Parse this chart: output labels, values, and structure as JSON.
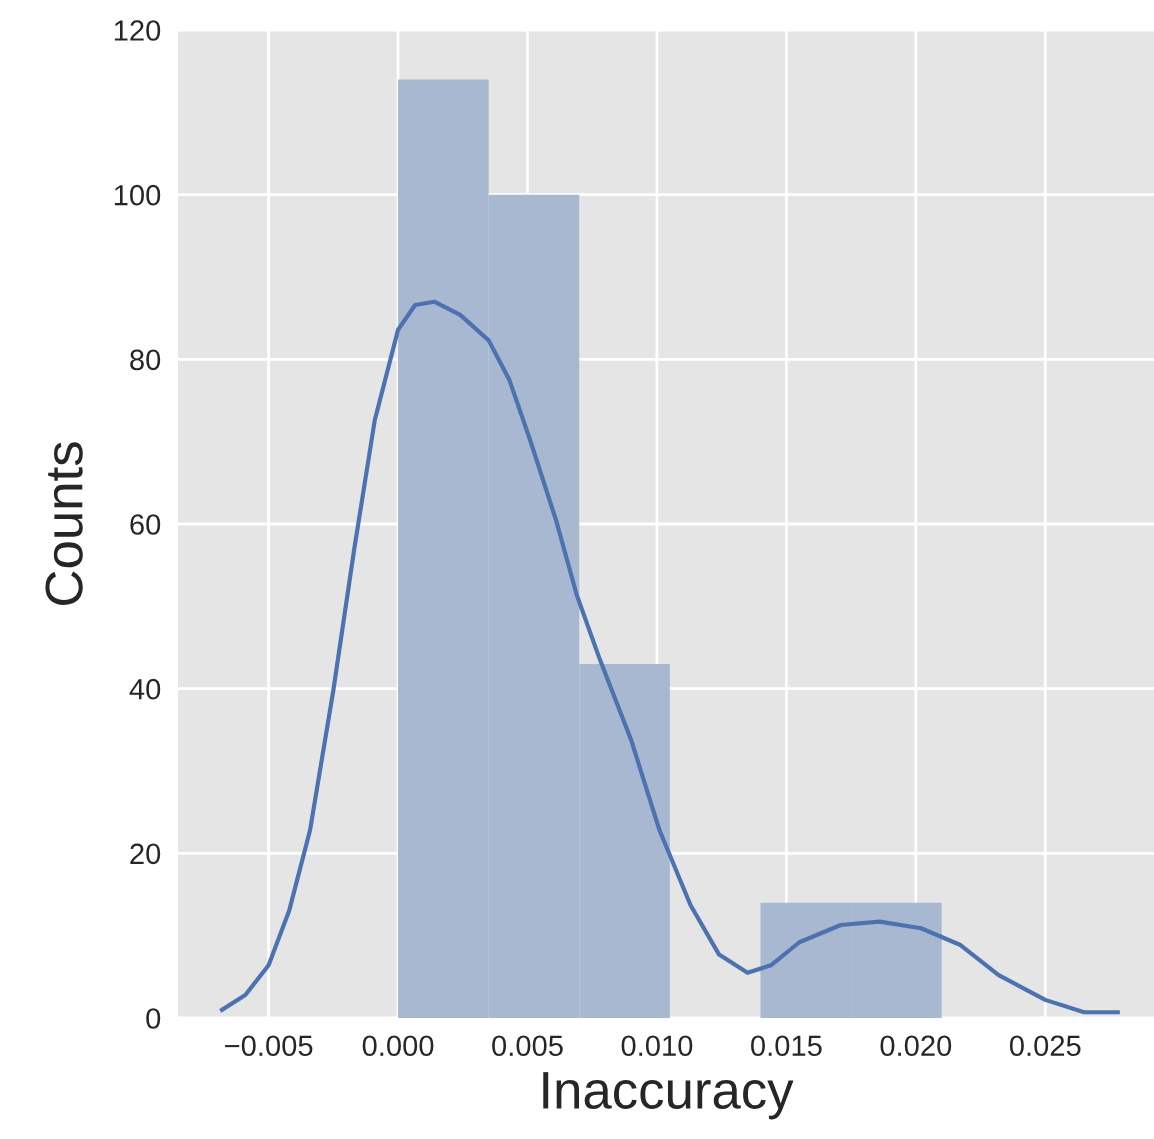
{
  "chart_data": {
    "type": "histogram",
    "xlabel": "Inaccuracy",
    "ylabel": "Counts",
    "bins": [
      0,
      0.0035,
      0.007,
      0.0105,
      0.014,
      0.0175,
      0.021
    ],
    "values": [
      114,
      100,
      43,
      0,
      14,
      14
    ],
    "color": "#a8b8d1",
    "series": [
      {
        "type": "line",
        "color": "#4c72b0",
        "x": [
          -0.0068,
          -0.0059,
          -0.005,
          -0.0042,
          -0.0034,
          -0.0025,
          -0.0017,
          -0.0009,
          0.0,
          0.00066,
          0.0014,
          0.0024,
          0.0035,
          0.0043,
          0.0051,
          0.0061,
          0.0069,
          0.0078,
          0.009,
          0.0101,
          0.0113,
          0.0124,
          0.0135,
          0.0144,
          0.0155,
          0.0171,
          0.0186,
          0.0202,
          0.0217,
          0.0232,
          0.025,
          0.0265,
          0.0278
        ],
        "values": [
          1.0,
          2.8,
          6.4,
          13.1,
          22.8,
          39.8,
          56.8,
          72.6,
          83.6,
          86.6,
          87.0,
          85.4,
          82.3,
          77.5,
          70.2,
          60.5,
          51.4,
          43.5,
          33.8,
          22.8,
          13.7,
          7.7,
          5.5,
          6.4,
          9.2,
          11.3,
          11.7,
          10.9,
          8.9,
          5.2,
          2.2,
          0.7,
          0.7
        ]
      }
    ],
    "xlim": [
      -0.0085,
      0.0292
    ],
    "ylim": [
      0,
      120
    ],
    "xticks": [
      {
        "value": -0.005,
        "label": "−0.005"
      },
      {
        "value": 0,
        "label": "0.000"
      },
      {
        "value": 0.005,
        "label": "0.005"
      },
      {
        "value": 0.01,
        "label": "0.010"
      },
      {
        "value": 0.015,
        "label": "0.015"
      },
      {
        "value": 0.02,
        "label": "0.020"
      },
      {
        "value": 0.025,
        "label": "0.025"
      }
    ],
    "yticks": [
      0,
      20,
      40,
      60,
      80,
      100,
      120
    ],
    "grid": true
  }
}
